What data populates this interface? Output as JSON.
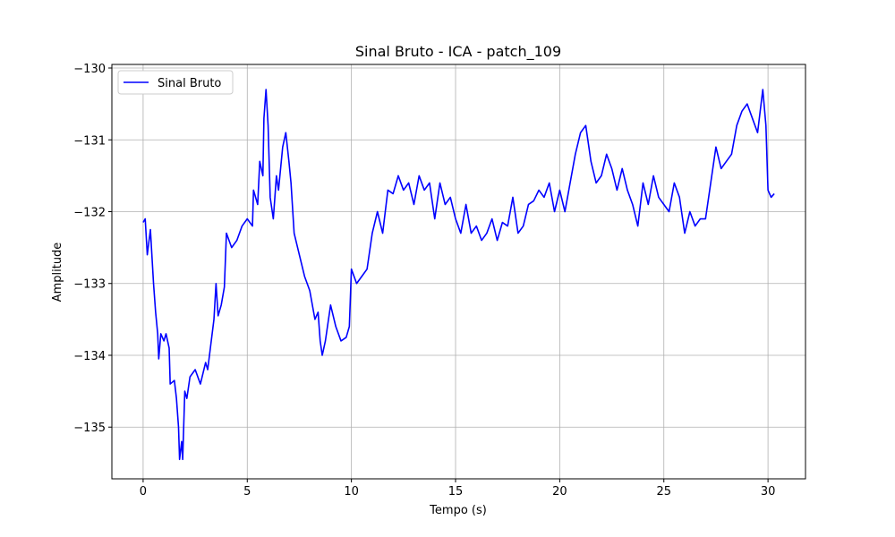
{
  "chart_data": {
    "type": "line",
    "title": "Sinal Bruto - ICA - patch_109",
    "x_label": "Tempo (s)",
    "y_label": "Amplitude",
    "xlim": [
      -1.5,
      31.8
    ],
    "ylim": [
      -135.72,
      -129.95
    ],
    "xticks": [
      0,
      5,
      10,
      15,
      20,
      25,
      30
    ],
    "yticks": [
      {
        "value": -135,
        "label": "−135"
      },
      {
        "value": -134,
        "label": "−134"
      },
      {
        "value": -133,
        "label": "−133"
      },
      {
        "value": -132,
        "label": "−132"
      },
      {
        "value": -131,
        "label": "−131"
      },
      {
        "value": -130,
        "label": "−130"
      }
    ],
    "grid": true,
    "legend_position": "upper left",
    "x": [
      0,
      0.1,
      0.2,
      0.35,
      0.5,
      0.6,
      0.7,
      0.75,
      0.85,
      1.0,
      1.1,
      1.25,
      1.3,
      1.5,
      1.6,
      1.7,
      1.75,
      1.85,
      1.9,
      2.0,
      2.1,
      2.25,
      2.5,
      2.75,
      3.0,
      3.1,
      3.25,
      3.4,
      3.5,
      3.6,
      3.75,
      3.9,
      4.0,
      4.25,
      4.5,
      4.75,
      5.0,
      5.25,
      5.3,
      5.5,
      5.6,
      5.75,
      5.8,
      5.9,
      6.0,
      6.1,
      6.25,
      6.4,
      6.5,
      6.7,
      6.85,
      7.0,
      7.1,
      7.25,
      7.5,
      7.75,
      8.0,
      8.25,
      8.4,
      8.5,
      8.6,
      8.75,
      9.0,
      9.25,
      9.5,
      9.75,
      9.9,
      10.0,
      10.25,
      10.5,
      10.75,
      11.0,
      11.25,
      11.5,
      11.75,
      12.0,
      12.25,
      12.5,
      12.75,
      13.0,
      13.25,
      13.5,
      13.75,
      14.0,
      14.25,
      14.5,
      14.75,
      15.0,
      15.25,
      15.5,
      15.75,
      16.0,
      16.25,
      16.5,
      16.75,
      17.0,
      17.25,
      17.5,
      17.75,
      18.0,
      18.25,
      18.5,
      18.75,
      19.0,
      19.25,
      19.5,
      19.75,
      20.0,
      20.25,
      20.5,
      20.75,
      21.0,
      21.25,
      21.5,
      21.75,
      22.0,
      22.25,
      22.5,
      22.75,
      23.0,
      23.25,
      23.5,
      23.75,
      24.0,
      24.25,
      24.5,
      24.75,
      25.0,
      25.25,
      25.5,
      25.75,
      26.0,
      26.25,
      26.5,
      26.75,
      27.0,
      27.25,
      27.5,
      27.75,
      28.0,
      28.25,
      28.5,
      28.75,
      29.0,
      29.25,
      29.5,
      29.75,
      29.9,
      30.0,
      30.15,
      30.3
    ],
    "series": [
      {
        "name": "Sinal Bruto",
        "color": "#0000ff",
        "values": [
          -132.15,
          -132.1,
          -132.6,
          -132.25,
          -133.0,
          -133.4,
          -133.7,
          -134.05,
          -133.7,
          -133.8,
          -133.7,
          -133.9,
          -134.4,
          -134.35,
          -134.6,
          -135.0,
          -135.45,
          -135.2,
          -135.45,
          -134.5,
          -134.6,
          -134.3,
          -134.2,
          -134.4,
          -134.1,
          -134.2,
          -133.85,
          -133.5,
          -133.0,
          -133.45,
          -133.3,
          -133.05,
          -132.3,
          -132.5,
          -132.4,
          -132.2,
          -132.1,
          -132.2,
          -131.7,
          -131.9,
          -131.3,
          -131.5,
          -130.7,
          -130.3,
          -130.8,
          -131.8,
          -132.1,
          -131.5,
          -131.7,
          -131.1,
          -130.9,
          -131.3,
          -131.6,
          -132.3,
          -132.6,
          -132.9,
          -133.1,
          -133.5,
          -133.4,
          -133.8,
          -134.0,
          -133.8,
          -133.3,
          -133.6,
          -133.8,
          -133.75,
          -133.6,
          -132.8,
          -133.0,
          -132.9,
          -132.8,
          -132.3,
          -132.0,
          -132.3,
          -131.7,
          -131.75,
          -131.5,
          -131.7,
          -131.6,
          -131.9,
          -131.5,
          -131.7,
          -131.6,
          -132.1,
          -131.6,
          -131.9,
          -131.8,
          -132.1,
          -132.3,
          -131.9,
          -132.3,
          -132.2,
          -132.4,
          -132.3,
          -132.1,
          -132.4,
          -132.15,
          -132.2,
          -131.8,
          -132.3,
          -132.2,
          -131.9,
          -131.85,
          -131.7,
          -131.8,
          -131.6,
          -132.0,
          -131.7,
          -132.0,
          -131.6,
          -131.2,
          -130.9,
          -130.8,
          -131.3,
          -131.6,
          -131.5,
          -131.2,
          -131.4,
          -131.7,
          -131.4,
          -131.7,
          -131.9,
          -132.2,
          -131.6,
          -131.9,
          -131.5,
          -131.8,
          -131.9,
          -132.0,
          -131.6,
          -131.8,
          -132.3,
          -132.0,
          -132.2,
          -132.1,
          -132.1,
          -131.6,
          -131.1,
          -131.4,
          -131.3,
          -131.2,
          -130.8,
          -130.6,
          -130.5,
          -130.7,
          -130.9,
          -130.3,
          -130.8,
          -131.7,
          -131.8,
          -131.75
        ]
      }
    ]
  }
}
